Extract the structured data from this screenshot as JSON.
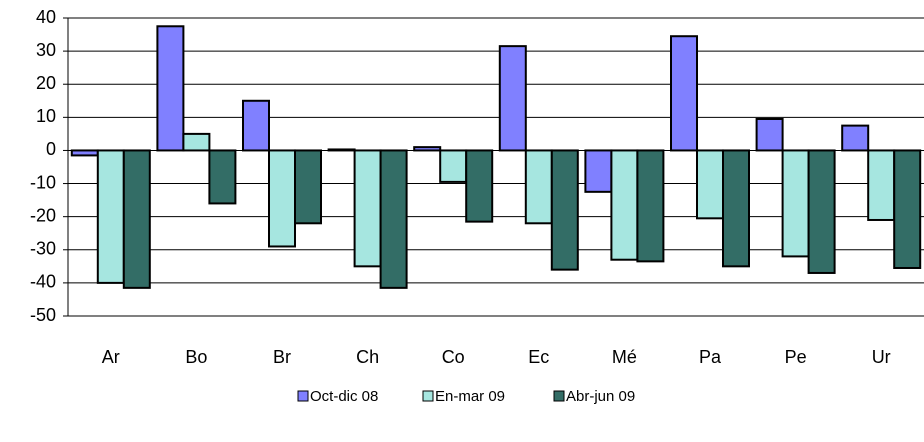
{
  "chart_data": {
    "type": "bar",
    "categories": [
      "Ar",
      "Bo",
      "Br",
      "Ch",
      "Co",
      "Ec",
      "Mé",
      "Pa",
      "Pe",
      "Ur"
    ],
    "series": [
      {
        "name": "Oct-dic 08",
        "color": "#8080ff",
        "values": [
          -1.5,
          37.5,
          15,
          0.3,
          1,
          31.5,
          -12.5,
          34.5,
          9.5,
          7.5
        ]
      },
      {
        "name": "En-mar 09",
        "color": "#a6e6e0",
        "values": [
          -40,
          5,
          -29,
          -35,
          -9.5,
          -22,
          -33,
          -20.5,
          -32,
          -21
        ]
      },
      {
        "name": "Abr-jun 09",
        "color": "#336d66",
        "values": [
          -41.5,
          -16,
          -22,
          -41.5,
          -21.5,
          -36,
          -33.5,
          -35,
          -37,
          -35.5
        ]
      }
    ],
    "ylim": [
      -50,
      40
    ],
    "yticks": [
      -50,
      -40,
      -30,
      -20,
      -10,
      0,
      10,
      20,
      30,
      40
    ],
    "grid": true
  }
}
